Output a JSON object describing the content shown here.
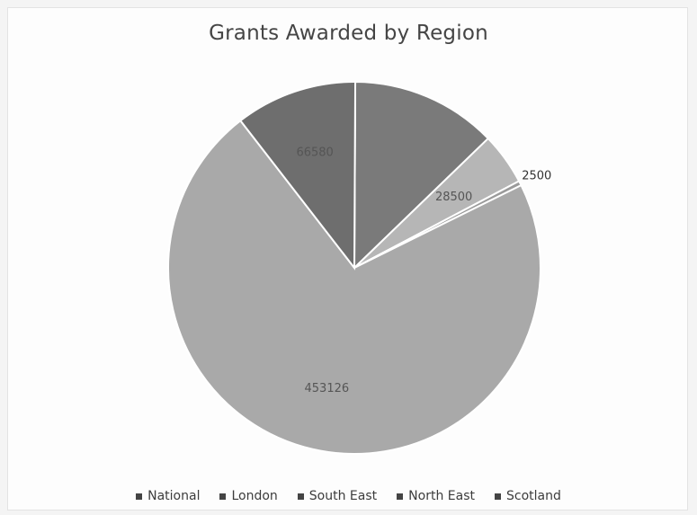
{
  "chart_data": {
    "type": "pie",
    "title": "Grants Awarded by Region",
    "categories": [
      "National",
      "London",
      "South East",
      "North East",
      "Scotland"
    ],
    "values": [
      80000,
      453126,
      66580,
      28500,
      2500
    ],
    "data_labels": [
      "",
      "453126",
      "66580",
      "28500",
      "2500"
    ],
    "colors": [
      "#7a7a7a",
      "#a9a9a9",
      "#6e6e6e",
      "#b6b6b6",
      "#9a9a9a"
    ],
    "legend_position": "bottom"
  }
}
